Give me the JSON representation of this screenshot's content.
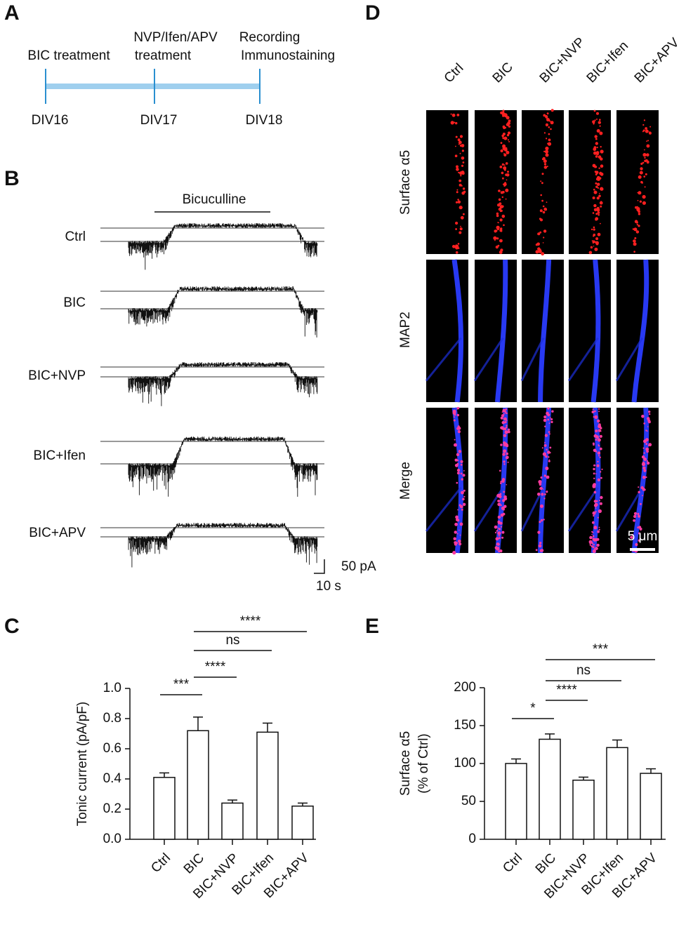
{
  "panel_labels": [
    "A",
    "B",
    "C",
    "D",
    "E"
  ],
  "timeline": {
    "events": [
      {
        "label_lines": [
          "BIC treatment"
        ],
        "day": "DIV16"
      },
      {
        "label_lines": [
          "NVP/Ifen/APV",
          "treatment"
        ],
        "day": "DIV17"
      },
      {
        "label_lines": [
          "Recording",
          "Immunostaining"
        ],
        "day": "DIV18"
      }
    ]
  },
  "traces": {
    "drug_label": "Bicuculline",
    "rows": [
      "Ctrl",
      "BIC",
      "BIC+NVP",
      "BIC+Ifen",
      "BIC+APV"
    ],
    "scale_y": "50 pA",
    "scale_x": "10 s"
  },
  "images": {
    "columns": [
      "Ctrl",
      "BIC",
      "BIC+NVP",
      "BIC+Ifen",
      "BIC+APV"
    ],
    "rows": [
      "Surface α5",
      "MAP2",
      "Merge"
    ],
    "scale_bar": "5 μm"
  },
  "chart_data": [
    {
      "type": "bar",
      "ylabel": "Tonic current (pA/pF)",
      "categories": [
        "Ctrl",
        "BIC",
        "BIC+NVP",
        "BIC+Ifen",
        "BIC+APV"
      ],
      "values": [
        0.41,
        0.72,
        0.24,
        0.71,
        0.22
      ],
      "errors": [
        0.03,
        0.09,
        0.02,
        0.06,
        0.02
      ],
      "color": "#ffffff",
      "ylim": [
        0,
        1
      ],
      "yticks": [
        {
          "value": 0,
          "label": "0.0"
        },
        0.2,
        0.4,
        0.6,
        0.8,
        {
          "value": 1,
          "label": "1.0"
        }
      ],
      "annotations": [
        {
          "text": "***",
          "from": "Ctrl",
          "to": "BIC"
        },
        {
          "text": "****",
          "from": "BIC",
          "to": "BIC+NVP"
        },
        {
          "text": "ns",
          "from": "BIC",
          "to": "BIC+Ifen"
        },
        {
          "text": "****",
          "from": "BIC",
          "to": "BIC+APV"
        }
      ]
    },
    {
      "type": "bar",
      "ylabel": [
        "Surface α5",
        "(% of Ctrl)"
      ],
      "categories": [
        "Ctrl",
        "BIC",
        "BIC+NVP",
        "BIC+Ifen",
        "BIC+APV"
      ],
      "values": [
        100,
        132,
        78,
        121,
        87
      ],
      "errors": [
        6,
        7,
        4,
        10,
        6
      ],
      "color": "#ffffff",
      "ylim": [
        0,
        200
      ],
      "yticks": [
        0,
        50,
        100,
        150,
        200
      ],
      "annotations": [
        {
          "text": "*",
          "from": "Ctrl",
          "to": "BIC"
        },
        {
          "text": "****",
          "from": "BIC",
          "to": "BIC+NVP"
        },
        {
          "text": "ns",
          "from": "BIC",
          "to": "BIC+Ifen"
        },
        {
          "text": "***",
          "from": "BIC",
          "to": "BIC+APV"
        }
      ]
    }
  ]
}
